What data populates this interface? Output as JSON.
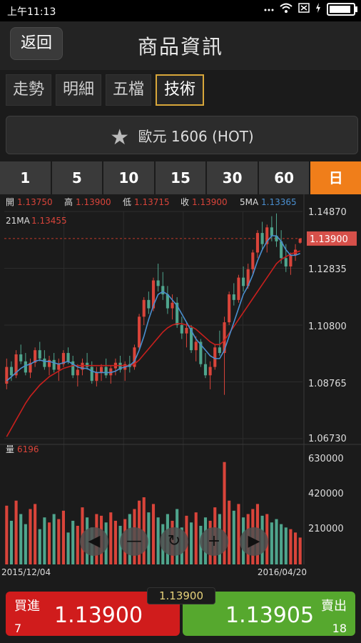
{
  "status_bar": {
    "time": "上午11:13"
  },
  "header": {
    "back_label": "返回",
    "title": "商品資訊"
  },
  "tabs": [
    {
      "label": "走勢"
    },
    {
      "label": "明細"
    },
    {
      "label": "五檔"
    },
    {
      "label": "技術"
    }
  ],
  "product": {
    "name": "歐元 1606 (HOT)",
    "icon": "star-icon"
  },
  "periods": [
    "1",
    "5",
    "10",
    "15",
    "30",
    "60",
    "日"
  ],
  "chart_data": {
    "type": "candlestick",
    "ohlc_legend": {
      "open_label": "開",
      "open": "1.13750",
      "high_label": "高",
      "high": "1.13900",
      "low_label": "低",
      "low": "1.13715",
      "close_label": "收",
      "close": "1.13900",
      "ma5_label": "5MA",
      "ma5": "1.13365",
      "ma21_label": "21MA",
      "ma21": "1.13455"
    },
    "y_ticks": [
      "1.14870",
      "1.12835",
      "1.10800",
      "1.08765",
      "1.06730"
    ],
    "ylim": [
      1.0673,
      1.1487
    ],
    "last_price": "1.13900",
    "volume_label": "量",
    "volume_value": "6196",
    "vol_ticks": [
      "630000",
      "420000",
      "210000"
    ],
    "vol_max": 630000,
    "x_start": "2015/12/04",
    "x_end": "2016/04/20",
    "candles": [
      [
        1.087,
        1.096,
        1.085,
        1.093
      ],
      [
        1.093,
        1.095,
        1.088,
        1.09
      ],
      [
        1.09,
        1.099,
        1.089,
        1.0975
      ],
      [
        1.0975,
        1.101,
        1.094,
        1.095
      ],
      [
        1.095,
        1.098,
        1.09,
        1.091
      ],
      [
        1.091,
        1.096,
        1.089,
        1.0945
      ],
      [
        1.0945,
        1.1,
        1.093,
        1.099
      ],
      [
        1.099,
        1.102,
        1.095,
        1.096
      ],
      [
        1.096,
        1.099,
        1.092,
        1.093
      ],
      [
        1.093,
        1.097,
        1.09,
        1.0955
      ],
      [
        1.0955,
        1.098,
        1.091,
        1.092
      ],
      [
        1.092,
        1.096,
        1.088,
        1.094
      ],
      [
        1.094,
        1.099,
        1.093,
        1.098
      ],
      [
        1.098,
        1.1,
        1.094,
        1.095
      ],
      [
        1.095,
        1.097,
        1.089,
        1.09
      ],
      [
        1.09,
        1.094,
        1.086,
        1.092
      ],
      [
        1.092,
        1.096,
        1.09,
        1.0945
      ],
      [
        1.0945,
        1.098,
        1.092,
        1.093
      ],
      [
        1.093,
        1.095,
        1.087,
        1.088
      ],
      [
        1.088,
        1.093,
        1.086,
        1.091
      ],
      [
        1.091,
        1.094,
        1.088,
        1.093
      ],
      [
        1.093,
        1.096,
        1.089,
        1.09
      ],
      [
        1.09,
        1.0935,
        1.087,
        1.0925
      ],
      [
        1.0925,
        1.096,
        1.09,
        1.0945
      ],
      [
        1.0945,
        1.097,
        1.091,
        1.092
      ],
      [
        1.092,
        1.095,
        1.088,
        1.094
      ],
      [
        1.094,
        1.097,
        1.091,
        1.093
      ],
      [
        1.093,
        1.101,
        1.092,
        1.1
      ],
      [
        1.1,
        1.112,
        1.099,
        1.111
      ],
      [
        1.111,
        1.118,
        1.108,
        1.117
      ],
      [
        1.117,
        1.12,
        1.112,
        1.114
      ],
      [
        1.114,
        1.125,
        1.113,
        1.124
      ],
      [
        1.124,
        1.13,
        1.12,
        1.122
      ],
      [
        1.122,
        1.127,
        1.117,
        1.119
      ],
      [
        1.119,
        1.122,
        1.112,
        1.114
      ],
      [
        1.114,
        1.119,
        1.11,
        1.116
      ],
      [
        1.116,
        1.118,
        1.107,
        1.108
      ],
      [
        1.108,
        1.111,
        1.103,
        1.105
      ],
      [
        1.105,
        1.109,
        1.1,
        1.107
      ],
      [
        1.107,
        1.108,
        1.098,
        1.099
      ],
      [
        1.099,
        1.104,
        1.095,
        1.102
      ],
      [
        1.102,
        1.103,
        1.093,
        1.094
      ],
      [
        1.094,
        1.098,
        1.089,
        1.09
      ],
      [
        1.09,
        1.095,
        1.085,
        1.093
      ],
      [
        1.093,
        1.101,
        1.092,
        1.1
      ],
      [
        1.1,
        1.106,
        1.097,
        1.098
      ],
      [
        1.098,
        1.111,
        1.083,
        1.109
      ],
      [
        1.109,
        1.12,
        1.108,
        1.119
      ],
      [
        1.119,
        1.123,
        1.115,
        1.117
      ],
      [
        1.117,
        1.126,
        1.116,
        1.125
      ],
      [
        1.125,
        1.129,
        1.12,
        1.122
      ],
      [
        1.122,
        1.13,
        1.121,
        1.128
      ],
      [
        1.128,
        1.135,
        1.126,
        1.134
      ],
      [
        1.134,
        1.142,
        1.132,
        1.141
      ],
      [
        1.141,
        1.145,
        1.135,
        1.137
      ],
      [
        1.137,
        1.144,
        1.134,
        1.143
      ],
      [
        1.143,
        1.147,
        1.138,
        1.14
      ],
      [
        1.14,
        1.148,
        1.136,
        1.138
      ],
      [
        1.138,
        1.142,
        1.13,
        1.132
      ],
      [
        1.132,
        1.137,
        1.127,
        1.129
      ],
      [
        1.129,
        1.134,
        1.126,
        1.133
      ],
      [
        1.133,
        1.137,
        1.131,
        1.135
      ],
      [
        1.1375,
        1.139,
        1.13715,
        1.139
      ]
    ],
    "volumes": [
      350000,
      260000,
      380000,
      300000,
      240000,
      330000,
      360000,
      210000,
      280000,
      250000,
      300000,
      270000,
      320000,
      190000,
      260000,
      230000,
      340000,
      280000,
      220000,
      300000,
      290000,
      250000,
      310000,
      260000,
      230000,
      270000,
      300000,
      330000,
      380000,
      400000,
      310000,
      360000,
      280000,
      240000,
      300000,
      260000,
      330000,
      220000,
      290000,
      250000,
      310000,
      230000,
      280000,
      260000,
      340000,
      300000,
      610000,
      380000,
      320000,
      360000,
      280000,
      300000,
      330000,
      360000,
      290000,
      300000,
      250000,
      270000,
      240000,
      220000,
      210000,
      190000,
      160000
    ],
    "ma5": [
      1.088,
      1.0895,
      1.091,
      1.0925,
      1.0935,
      1.094,
      1.095,
      1.0955,
      1.095,
      1.095,
      1.0945,
      1.094,
      1.0945,
      1.095,
      1.094,
      1.093,
      1.0925,
      1.0925,
      1.0915,
      1.091,
      1.091,
      1.091,
      1.091,
      1.0915,
      1.0925,
      1.093,
      1.0935,
      1.095,
      1.099,
      1.104,
      1.11,
      1.115,
      1.119,
      1.12,
      1.119,
      1.117,
      1.115,
      1.112,
      1.109,
      1.106,
      1.103,
      1.101,
      1.099,
      1.097,
      1.096,
      1.096,
      1.099,
      1.104,
      1.109,
      1.114,
      1.119,
      1.122,
      1.126,
      1.131,
      1.135,
      1.138,
      1.14,
      1.14,
      1.138,
      1.135,
      1.133,
      1.133,
      1.13365
    ],
    "ma21": [
      1.068,
      1.071,
      1.074,
      1.077,
      1.08,
      1.0825,
      1.0845,
      1.0865,
      1.088,
      1.0895,
      1.0905,
      1.0915,
      1.0925,
      1.093,
      1.0935,
      1.0935,
      1.0935,
      1.0935,
      1.0935,
      1.0935,
      1.0935,
      1.0935,
      1.0935,
      1.0935,
      1.0935,
      1.0935,
      1.0935,
      1.094,
      1.0955,
      1.0975,
      1.0995,
      1.1015,
      1.1035,
      1.1055,
      1.107,
      1.108,
      1.1085,
      1.1085,
      1.108,
      1.1075,
      1.1065,
      1.105,
      1.1035,
      1.102,
      1.101,
      1.101,
      1.1025,
      1.105,
      1.1075,
      1.11,
      1.1125,
      1.115,
      1.1175,
      1.12,
      1.1225,
      1.125,
      1.1275,
      1.13,
      1.1315,
      1.1325,
      1.1335,
      1.134,
      1.13455
    ],
    "colors": {
      "up": "#d9443a",
      "down": "#4fa58d",
      "ma5": "#4a8fd0",
      "ma21": "#c8201d",
      "grid": "#2c2c2c",
      "price_line": "#c23a2a",
      "last_bg": "#d6504a"
    }
  },
  "controls": {
    "left": "◀",
    "minus": "—",
    "refresh": "↻",
    "plus": "+",
    "right": "▶"
  },
  "trade": {
    "last_price": "1.13900",
    "buy_label": "買進",
    "buy_price": "1.13900",
    "buy_qty": "7",
    "sell_label": "賣出",
    "sell_price": "1.13905",
    "sell_qty": "18"
  }
}
